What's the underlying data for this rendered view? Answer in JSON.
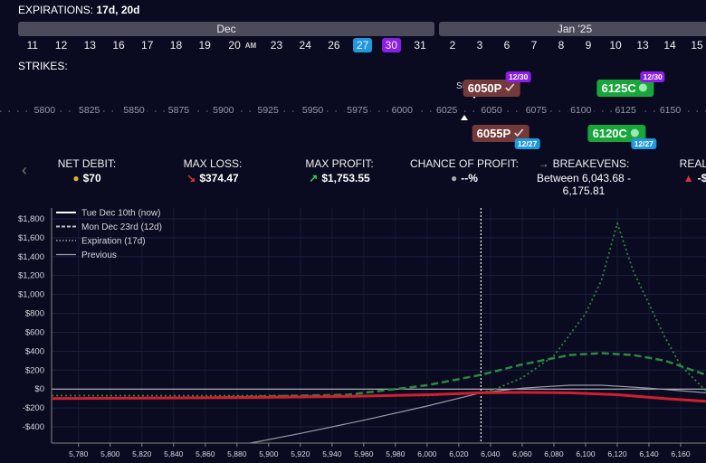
{
  "expirations": {
    "label": "EXPIRATIONS:",
    "value": "17d, 20d"
  },
  "months": [
    "Dec",
    "Jan '25"
  ],
  "dates": [
    [
      {
        "day": 11
      },
      {
        "day": 12
      },
      {
        "day": 13
      },
      {
        "day": 16
      },
      {
        "day": 17
      },
      {
        "day": 18
      },
      {
        "day": 19
      },
      {
        "day": 20,
        "tag": "AM"
      },
      {
        "day": 23
      },
      {
        "day": 24
      },
      {
        "day": 26
      },
      {
        "day": 27,
        "highlight": "#1f98dc"
      },
      {
        "day": 30,
        "highlight": "#8b1de6"
      },
      {
        "day": 31
      }
    ],
    [
      {
        "day": 2
      },
      {
        "day": 3
      },
      {
        "day": 6
      },
      {
        "day": 7
      },
      {
        "day": 8
      },
      {
        "day": 9
      },
      {
        "day": 10
      },
      {
        "day": 13
      },
      {
        "day": 14
      },
      {
        "day": 15
      }
    ]
  ],
  "strikes": {
    "label": "STRIKES:",
    "spot_label": "SP",
    "lim": [
      5775,
      6170
    ],
    "ticks": [
      5800,
      5825,
      5850,
      5875,
      5900,
      5925,
      5950,
      5975,
      6000,
      6025,
      6050,
      6075,
      6100,
      6125,
      6150
    ],
    "legs": [
      {
        "label": "6050P",
        "strike": 6050,
        "date": "12/30",
        "color": "#74393b",
        "badge_color": "#8b1de6",
        "position": "above"
      },
      {
        "label": "6125C",
        "strike": 6125,
        "date": "12/30",
        "color": "#18a53a",
        "badge_color": "#8b1de6",
        "position": "above"
      },
      {
        "label": "6055P",
        "strike": 6055,
        "date": "12/27",
        "color": "#74393b",
        "badge_color": "#1f98dc",
        "position": "below"
      },
      {
        "label": "6120C",
        "strike": 6120,
        "date": "12/27",
        "color": "#18a53a",
        "badge_color": "#1f98dc",
        "position": "below"
      }
    ]
  },
  "stats": [
    {
      "label": "NET DEBIT:",
      "value": "$70"
    },
    {
      "label": "MAX LOSS:",
      "value": "$374.47"
    },
    {
      "label": "MAX PROFIT:",
      "value": "$1,753.55"
    },
    {
      "label": "CHANCE OF PROFIT:",
      "value": "--%"
    },
    {
      "label": "BREAKEVENS:",
      "value": "Between 6,043.68 - 6,175.81"
    },
    {
      "label": "REALI",
      "value": "-$"
    }
  ],
  "chart": {
    "type": "line",
    "xlim": [
      5763,
      6176
    ],
    "ylim": [
      -572,
      1915
    ],
    "xticks": [
      {
        "value": 5780,
        "label": "5,780"
      },
      {
        "value": 5800,
        "label": "5,800"
      },
      {
        "value": 5820,
        "label": "5,820"
      },
      {
        "value": 5840,
        "label": "5,840"
      },
      {
        "value": 5860,
        "label": "5,860"
      },
      {
        "value": 5880,
        "label": "5,880"
      },
      {
        "value": 5900,
        "label": "5,900"
      },
      {
        "value": 5920,
        "label": "5,920"
      },
      {
        "value": 5940,
        "label": "5,940"
      },
      {
        "value": 5960,
        "label": "5,960"
      },
      {
        "value": 5980,
        "label": "5,980"
      },
      {
        "value": 6000,
        "label": "6,000"
      },
      {
        "value": 6020,
        "label": "6,020"
      },
      {
        "value": 6040,
        "label": "6,040"
      },
      {
        "value": 6060,
        "label": "6,060"
      },
      {
        "value": 6080,
        "label": "6,080"
      },
      {
        "value": 6100,
        "label": "6,100"
      },
      {
        "value": 6120,
        "label": "6,120"
      },
      {
        "value": 6140,
        "label": "6,140"
      },
      {
        "value": 6160,
        "label": "6,160"
      }
    ],
    "yticks": [
      {
        "value": 1800,
        "label": "$1,800"
      },
      {
        "value": 1600,
        "label": "$1,600"
      },
      {
        "value": 1400,
        "label": "$1,400"
      },
      {
        "value": 1200,
        "label": "$1,200"
      },
      {
        "value": 1000,
        "label": "$1,000"
      },
      {
        "value": 800,
        "label": "$800"
      },
      {
        "value": 600,
        "label": "$600"
      },
      {
        "value": 400,
        "label": "$400"
      },
      {
        "value": 200,
        "label": "$200"
      },
      {
        "value": 0,
        "label": "$0"
      },
      {
        "value": -200,
        "label": "-$200"
      },
      {
        "value": -400,
        "label": "-$400"
      }
    ],
    "grid": true,
    "spot": 6034,
    "series": [
      {
        "name": "Tue Dec 10th (now)",
        "color": "#d21f2e",
        "legend_color": "#ffffff",
        "style": "solid",
        "width": 3,
        "x": [
          5763,
          5800,
          5850,
          5900,
          5950,
          6000,
          6034,
          6060,
          6090,
          6120,
          6150,
          6176
        ],
        "values": [
          -100,
          -98,
          -94,
          -88,
          -78,
          -60,
          -40,
          -35,
          -40,
          -60,
          -100,
          -130
        ]
      },
      {
        "name": "Mon Dec 23rd (12d)",
        "color": "#2a8a3e",
        "legend_color": "#bfbfc8",
        "style": "dashed",
        "width": 2.5,
        "x": [
          5763,
          5850,
          5950,
          6000,
          6034,
          6060,
          6090,
          6110,
          6130,
          6150,
          6176
        ],
        "values": [
          -100,
          -95,
          -60,
          40,
          150,
          260,
          360,
          380,
          360,
          300,
          150
        ]
      },
      {
        "name": "Expiration (17d)",
        "color": "#2f8a3a",
        "legend_color": "#bfbfc8",
        "style": "dotted",
        "width": 1.8,
        "x": [
          5763,
          5900,
          6000,
          6034,
          6043,
          6060,
          6080,
          6100,
          6110,
          6120,
          6130,
          6150,
          6160,
          6176
        ],
        "values": [
          -70,
          -70,
          -70,
          -40,
          0,
          120,
          350,
          800,
          1150,
          1753,
          1250,
          550,
          250,
          -20
        ]
      },
      {
        "name": "Previous",
        "color": "#9a9aaa",
        "legend_color": "#9a9aaa",
        "style": "solid",
        "width": 1.2,
        "x": [
          5880,
          5920,
          5960,
          6000,
          6034,
          6060,
          6090,
          6110,
          6140,
          6176
        ],
        "values": [
          -600,
          -470,
          -330,
          -180,
          -40,
          10,
          40,
          40,
          10,
          -40
        ]
      }
    ]
  }
}
